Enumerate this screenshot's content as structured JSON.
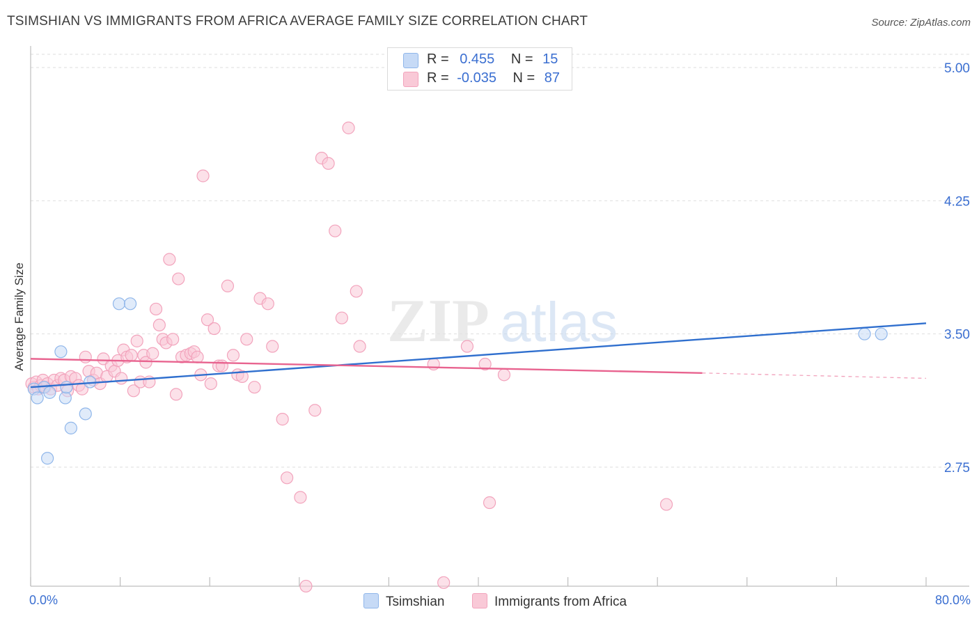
{
  "chart_data": {
    "type": "scatter",
    "title": "TSIMSHIAN VS IMMIGRANTS FROM AFRICA AVERAGE FAMILY SIZE CORRELATION CHART",
    "source": "Source: ZipAtlas.com",
    "xlabel": "",
    "ylabel": "Average Family Size",
    "xlim": [
      0,
      80
    ],
    "ylim": [
      2.0,
      5.1
    ],
    "x_tick_labels": [
      "0.0%",
      "80.0%"
    ],
    "y_ticks": [
      {
        "value": 5.0,
        "label": "5.00"
      },
      {
        "value": 4.25,
        "label": "4.25"
      },
      {
        "value": 3.5,
        "label": "3.50"
      },
      {
        "value": 2.75,
        "label": "2.75"
      }
    ],
    "watermark": "ZIPatlas",
    "legend": {
      "rows": [
        {
          "r_label": "R =",
          "r_value": "0.455",
          "n_label": "N =",
          "n_value": "15"
        },
        {
          "r_label": "R =",
          "r_value": "-0.035",
          "n_label": "N =",
          "n_value": "87"
        }
      ]
    },
    "series": [
      {
        "name": "Tsimshian",
        "color": "#8fb6ea",
        "fill": "#c6daf6",
        "line_color": "#2f6fce",
        "trend": {
          "x": [
            0,
            80
          ],
          "y": [
            3.2,
            3.56
          ]
        },
        "points": [
          {
            "x": 0.3,
            "y": 3.19
          },
          {
            "x": 0.6,
            "y": 3.14
          },
          {
            "x": 1.2,
            "y": 3.2
          },
          {
            "x": 1.5,
            "y": 2.8
          },
          {
            "x": 1.7,
            "y": 3.17
          },
          {
            "x": 2.7,
            "y": 3.4
          },
          {
            "x": 3.1,
            "y": 3.14
          },
          {
            "x": 3.2,
            "y": 3.2
          },
          {
            "x": 3.6,
            "y": 2.97
          },
          {
            "x": 4.9,
            "y": 3.05
          },
          {
            "x": 5.3,
            "y": 3.23
          },
          {
            "x": 7.9,
            "y": 3.67
          },
          {
            "x": 8.9,
            "y": 3.67
          },
          {
            "x": 74.5,
            "y": 3.5
          },
          {
            "x": 76.0,
            "y": 3.5
          }
        ]
      },
      {
        "name": "Immigrants from Africa",
        "color": "#f2a3bc",
        "fill": "#f9c9d7",
        "line_color": "#e8638f",
        "trend": {
          "x": [
            0,
            60
          ],
          "y": [
            3.36,
            3.28
          ]
        },
        "trend_dashed": {
          "x": [
            60,
            80
          ],
          "y": [
            3.28,
            3.25
          ]
        },
        "points": [
          {
            "x": 0.1,
            "y": 3.22
          },
          {
            "x": 0.3,
            "y": 3.2
          },
          {
            "x": 0.5,
            "y": 3.23
          },
          {
            "x": 0.7,
            "y": 3.19
          },
          {
            "x": 0.9,
            "y": 3.21
          },
          {
            "x": 1.1,
            "y": 3.24
          },
          {
            "x": 1.3,
            "y": 3.2
          },
          {
            "x": 1.5,
            "y": 3.22
          },
          {
            "x": 1.8,
            "y": 3.19
          },
          {
            "x": 2.1,
            "y": 3.24
          },
          {
            "x": 2.4,
            "y": 3.21
          },
          {
            "x": 2.7,
            "y": 3.25
          },
          {
            "x": 3.0,
            "y": 3.24
          },
          {
            "x": 3.3,
            "y": 3.18
          },
          {
            "x": 3.6,
            "y": 3.26
          },
          {
            "x": 4.0,
            "y": 3.25
          },
          {
            "x": 4.3,
            "y": 3.21
          },
          {
            "x": 4.6,
            "y": 3.19
          },
          {
            "x": 4.9,
            "y": 3.37
          },
          {
            "x": 5.2,
            "y": 3.29
          },
          {
            "x": 5.6,
            "y": 3.24
          },
          {
            "x": 5.9,
            "y": 3.28
          },
          {
            "x": 6.2,
            "y": 3.22
          },
          {
            "x": 6.5,
            "y": 3.36
          },
          {
            "x": 6.8,
            "y": 3.26
          },
          {
            "x": 7.2,
            "y": 3.32
          },
          {
            "x": 7.5,
            "y": 3.29
          },
          {
            "x": 7.8,
            "y": 3.35
          },
          {
            "x": 8.1,
            "y": 3.25
          },
          {
            "x": 8.3,
            "y": 3.41
          },
          {
            "x": 8.6,
            "y": 3.37
          },
          {
            "x": 9.0,
            "y": 3.38
          },
          {
            "x": 9.2,
            "y": 3.18
          },
          {
            "x": 9.5,
            "y": 3.46
          },
          {
            "x": 9.8,
            "y": 3.23
          },
          {
            "x": 10.1,
            "y": 3.38
          },
          {
            "x": 10.3,
            "y": 3.34
          },
          {
            "x": 10.6,
            "y": 3.23
          },
          {
            "x": 10.9,
            "y": 3.39
          },
          {
            "x": 11.2,
            "y": 3.64
          },
          {
            "x": 11.5,
            "y": 3.55
          },
          {
            "x": 11.8,
            "y": 3.47
          },
          {
            "x": 12.1,
            "y": 3.45
          },
          {
            "x": 12.4,
            "y": 3.92
          },
          {
            "x": 12.7,
            "y": 3.47
          },
          {
            "x": 13.0,
            "y": 3.16
          },
          {
            "x": 13.2,
            "y": 3.81
          },
          {
            "x": 13.5,
            "y": 3.37
          },
          {
            "x": 13.9,
            "y": 3.38
          },
          {
            "x": 14.3,
            "y": 3.39
          },
          {
            "x": 14.6,
            "y": 3.4
          },
          {
            "x": 14.9,
            "y": 3.37
          },
          {
            "x": 15.2,
            "y": 3.27
          },
          {
            "x": 15.4,
            "y": 4.39
          },
          {
            "x": 15.8,
            "y": 3.58
          },
          {
            "x": 16.1,
            "y": 3.22
          },
          {
            "x": 16.4,
            "y": 3.53
          },
          {
            "x": 16.8,
            "y": 3.32
          },
          {
            "x": 17.1,
            "y": 3.32
          },
          {
            "x": 17.6,
            "y": 3.77
          },
          {
            "x": 18.1,
            "y": 3.38
          },
          {
            "x": 18.5,
            "y": 3.27
          },
          {
            "x": 18.9,
            "y": 3.26
          },
          {
            "x": 19.3,
            "y": 3.47
          },
          {
            "x": 20.0,
            "y": 3.2
          },
          {
            "x": 20.5,
            "y": 3.7
          },
          {
            "x": 21.2,
            "y": 3.67
          },
          {
            "x": 21.6,
            "y": 3.43
          },
          {
            "x": 22.5,
            "y": 3.02
          },
          {
            "x": 22.9,
            "y": 2.69
          },
          {
            "x": 24.1,
            "y": 2.58
          },
          {
            "x": 24.6,
            "y": 2.08
          },
          {
            "x": 25.4,
            "y": 3.07
          },
          {
            "x": 26.0,
            "y": 4.49
          },
          {
            "x": 26.6,
            "y": 4.46
          },
          {
            "x": 27.2,
            "y": 4.08
          },
          {
            "x": 27.8,
            "y": 3.59
          },
          {
            "x": 28.4,
            "y": 4.66
          },
          {
            "x": 29.1,
            "y": 3.74
          },
          {
            "x": 29.4,
            "y": 3.43
          },
          {
            "x": 36.9,
            "y": 2.1
          },
          {
            "x": 40.6,
            "y": 3.33
          },
          {
            "x": 42.3,
            "y": 3.27
          },
          {
            "x": 36.0,
            "y": 3.33
          },
          {
            "x": 41.0,
            "y": 2.55
          },
          {
            "x": 56.8,
            "y": 2.54
          },
          {
            "x": 39.0,
            "y": 3.43
          }
        ]
      }
    ]
  },
  "bottom_legend": [
    {
      "label": "Tsimshian",
      "fill": "#c6daf6",
      "stroke": "#8fb6ea"
    },
    {
      "label": "Immigrants from Africa",
      "fill": "#f9c9d7",
      "stroke": "#f2a3bc"
    }
  ],
  "colors": {
    "blue_text": "#3b6fd1",
    "grid": "#dedede",
    "axis": "#bdbdbd"
  }
}
